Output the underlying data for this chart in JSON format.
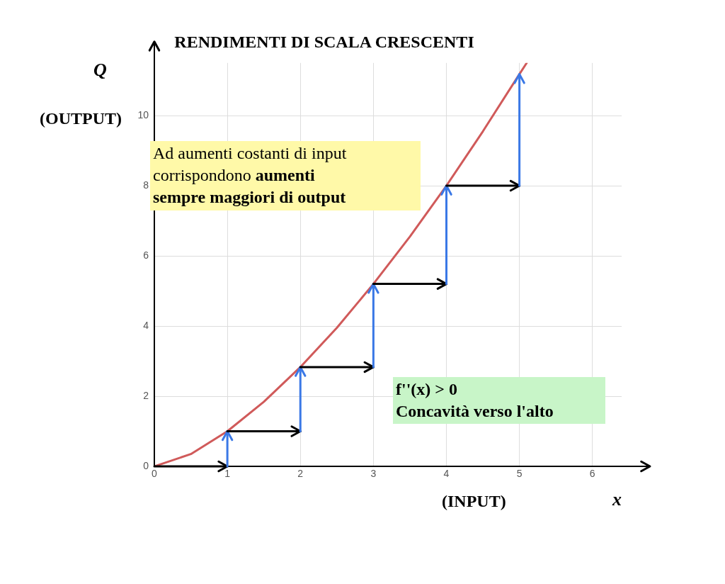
{
  "chart_data": {
    "type": "line",
    "title": "RENDIMENTI DI SCALA CRESCENTI",
    "xlabel": "x",
    "ylabel": "Q",
    "xlim": [
      0,
      6.4
    ],
    "ylim": [
      0,
      11.5
    ],
    "xticks": [
      0,
      1,
      2,
      3,
      4,
      5,
      6
    ],
    "yticks": [
      0,
      2,
      4,
      6,
      8,
      10
    ],
    "grid": true,
    "marker": "none",
    "line_style": "solid",
    "series": [
      {
        "color": "#d05a5a",
        "x": [
          0,
          0.5,
          1,
          1.5,
          2,
          2.5,
          3,
          3.5,
          4,
          4.5,
          5,
          5.1
        ],
        "values": [
          0,
          0.35,
          1,
          1.84,
          2.83,
          3.95,
          5.2,
          6.55,
          8,
          9.55,
          11.18,
          11.5
        ]
      }
    ],
    "annotations": [
      "(OUTPUT)",
      "(INPUT)",
      "Ad aumenti costanti di input corrispondono",
      "aumenti sempre maggiori di output",
      "f''(x) > 0",
      "Concavità verso l'alto"
    ]
  }
}
